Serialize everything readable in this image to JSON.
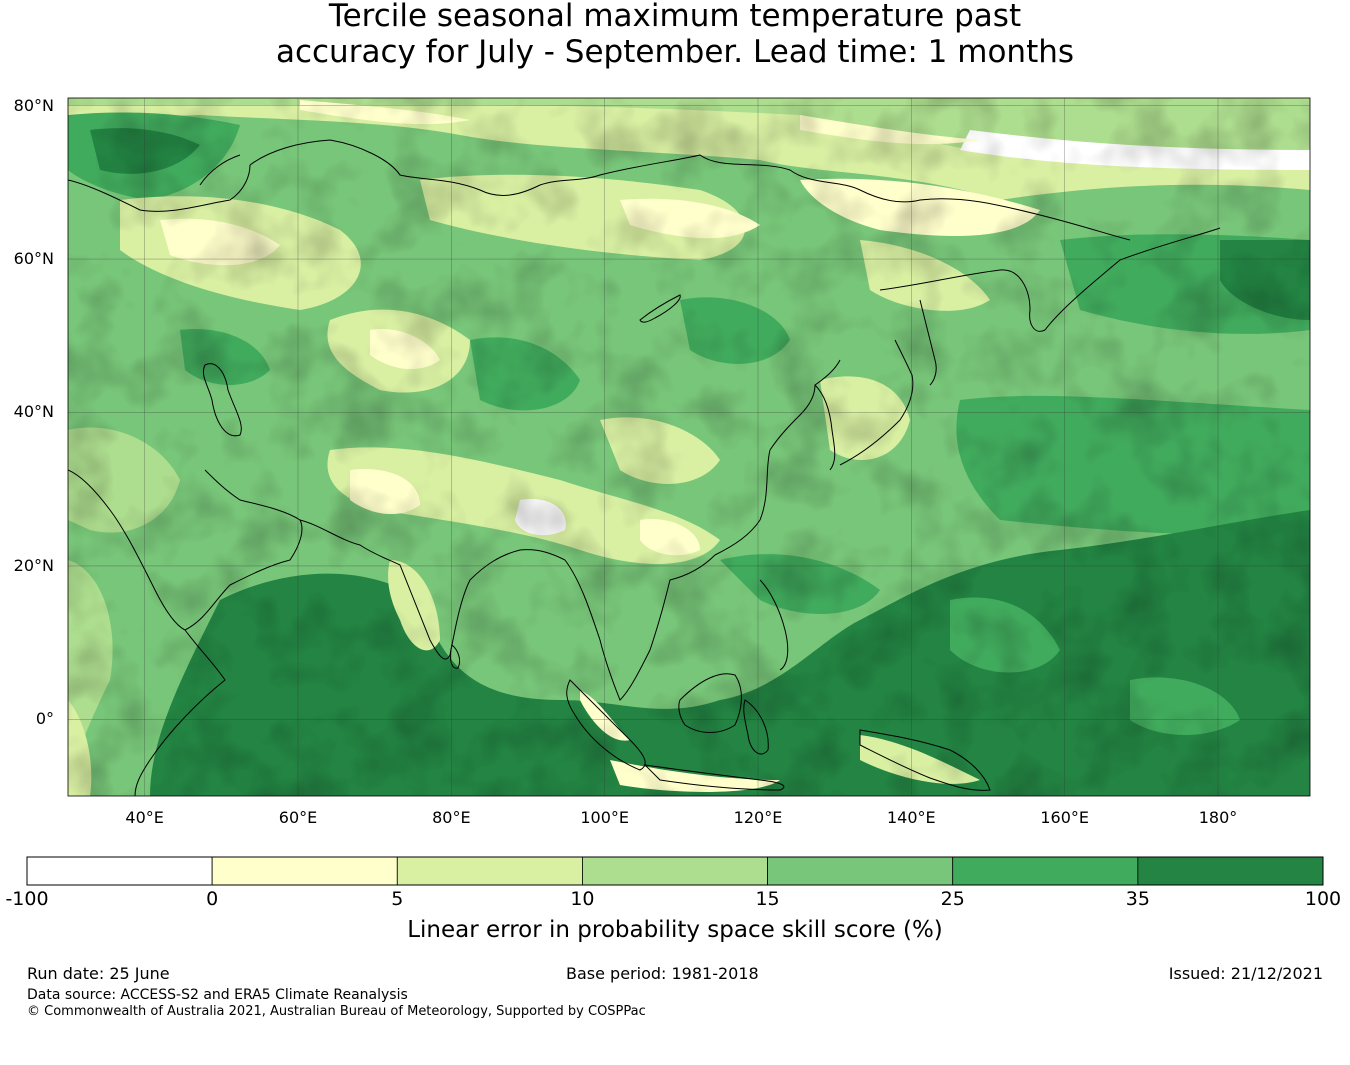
{
  "title": {
    "line1": "Tercile seasonal maximum temperature past",
    "line2": "accuracy for July - September. Lead time: 1 months"
  },
  "map": {
    "lat_labels": [
      "80°N",
      "60°N",
      "40°N",
      "20°N",
      "0°"
    ],
    "lon_labels": [
      "40°E",
      "60°E",
      "80°E",
      "100°E",
      "120°E",
      "140°E",
      "160°E",
      "180°"
    ],
    "lat_values": [
      80,
      60,
      40,
      20,
      0
    ],
    "lon_values": [
      40,
      60,
      80,
      100,
      120,
      140,
      160,
      180
    ],
    "extent": {
      "lon_min": 30,
      "lon_max": 192,
      "lat_min": -10,
      "lat_max": 81
    }
  },
  "colorbar": {
    "ticks": [
      "-100",
      "0",
      "5",
      "10",
      "15",
      "25",
      "35",
      "100"
    ],
    "bins": [
      {
        "from": -100,
        "to": 0,
        "color": "#ffffff"
      },
      {
        "from": 0,
        "to": 5,
        "color": "#ffffcc"
      },
      {
        "from": 5,
        "to": 10,
        "color": "#d9f0a3"
      },
      {
        "from": 10,
        "to": 15,
        "color": "#addd8e"
      },
      {
        "from": 15,
        "to": 25,
        "color": "#78c679"
      },
      {
        "from": 25,
        "to": 35,
        "color": "#41ab5d"
      },
      {
        "from": 35,
        "to": 100,
        "color": "#238443"
      }
    ],
    "label": "Linear error in probability space skill score (%)"
  },
  "footer": {
    "run_date": "Run date: 25 June",
    "base_period": "Base period: 1981-2018",
    "issued": "Issued: 21/12/2021",
    "data_source": "Data source: ACCESS-S2 and ERA5 Climate Reanalysis",
    "copyright": "© Commonwealth of Australia 2021, Australian Bureau of Meteorology, Supported by COSPPac"
  }
}
